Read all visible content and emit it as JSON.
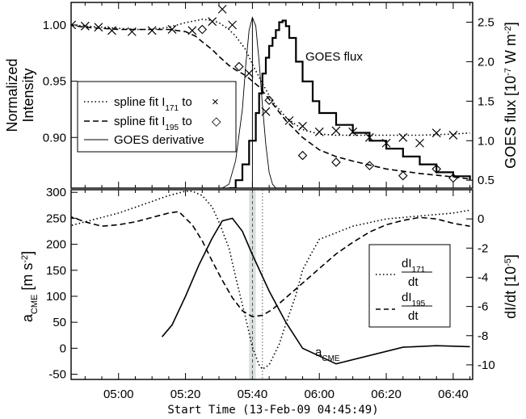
{
  "chart_data": [
    {
      "type": "line",
      "panel": "top",
      "x_unit": "UT",
      "xlim": [
        "04:45:49",
        "06:45:49"
      ],
      "ylabel_left": [
        "Normalized",
        "Intensity"
      ],
      "ylim_left": [
        0.855,
        1.02
      ],
      "yticks_left": [
        0.9,
        0.95,
        1.0
      ],
      "ytick_labels_left": [
        "0.90",
        "0.95",
        "1.00"
      ],
      "ylabel_right": "GOES flux [10-7 W m-2]",
      "ylabel_right_parts": {
        "base": "GOES flux [10",
        "exp1": "-7",
        "mid": " W m",
        "exp2": "-2",
        "end": "]"
      },
      "ylim_right": [
        0.4,
        2.75
      ],
      "yticks_right": [
        0.5,
        1.0,
        1.5,
        2.0,
        2.5
      ],
      "ytick_labels_right": [
        "0.5",
        "1.0",
        "1.5",
        "2.0",
        "2.5"
      ],
      "legend": {
        "placement": "left-middle",
        "entries": [
          {
            "label_base": "spline fit I",
            "label_sub": "171",
            "label_tail": " to",
            "marker": "×",
            "style": "dotted"
          },
          {
            "label_base": "spline fit I",
            "label_sub": "195",
            "label_tail": " to",
            "marker": "◇",
            "style": "dashed"
          },
          {
            "label_base": "GOES derivative",
            "style": "thin"
          }
        ]
      },
      "annotations": [
        "GOES flux"
      ],
      "series": [
        {
          "name": "spline fit I171",
          "axis": "left",
          "style": "dotted",
          "x": [
            "04:45",
            "04:50",
            "04:55",
            "05:00",
            "05:05",
            "05:10",
            "05:15",
            "05:20",
            "05:25",
            "05:28",
            "05:30",
            "05:33",
            "05:35",
            "05:38",
            "05:40",
            "05:43",
            "05:46",
            "05:50",
            "05:55",
            "06:00",
            "06:05",
            "06:10",
            "06:20",
            "06:30",
            "06:40",
            "06:45"
          ],
          "y": [
            1.0,
            0.999,
            0.998,
            0.997,
            0.996,
            0.996,
            0.998,
            1.002,
            1.005,
            1.004,
            1.002,
            0.996,
            0.99,
            0.978,
            0.965,
            0.948,
            0.932,
            0.918,
            0.907,
            0.903,
            0.902,
            0.902,
            0.902,
            0.902,
            0.903,
            0.904
          ]
        },
        {
          "name": "spline fit I195",
          "axis": "left",
          "style": "dashed",
          "x": [
            "04:45",
            "04:50",
            "04:55",
            "05:00",
            "05:05",
            "05:10",
            "05:15",
            "05:20",
            "05:23",
            "05:25",
            "05:28",
            "05:30",
            "05:33",
            "05:35",
            "05:38",
            "05:40",
            "05:42",
            "05:45",
            "05:50",
            "05:55",
            "06:00",
            "06:05",
            "06:10",
            "06:20",
            "06:30",
            "06:40",
            "06:45"
          ],
          "y": [
            1.0,
            0.998,
            0.997,
            0.996,
            0.996,
            0.996,
            0.996,
            0.994,
            0.99,
            0.985,
            0.978,
            0.972,
            0.964,
            0.96,
            0.955,
            0.95,
            0.945,
            0.934,
            0.915,
            0.9,
            0.889,
            0.883,
            0.879,
            0.872,
            0.868,
            0.865,
            0.863
          ]
        },
        {
          "name": "I171 data",
          "axis": "left",
          "style": "x-markers",
          "x": [
            "04:46",
            "04:50",
            "04:54",
            "04:58",
            "05:04",
            "05:10",
            "05:16",
            "05:22",
            "05:28",
            "05:31",
            "05:34",
            "05:39",
            "05:44",
            "05:51",
            "05:55",
            "06:00",
            "06:05",
            "06:10",
            "06:15",
            "06:20",
            "06:25",
            "06:30",
            "06:35",
            "06:40"
          ],
          "y": [
            1.0,
            0.999,
            0.998,
            0.995,
            0.994,
            0.995,
            0.996,
            0.995,
            1.003,
            1.014,
            1.0,
            0.957,
            0.923,
            0.915,
            0.91,
            0.905,
            0.906,
            0.905,
            0.9,
            0.895,
            0.9,
            0.895,
            0.904,
            0.902
          ]
        },
        {
          "name": "I195 data",
          "axis": "left",
          "style": "diamond-markers",
          "x": [
            "05:25",
            "05:36",
            "05:45",
            "05:55",
            "06:05",
            "06:15",
            "06:25",
            "06:35",
            "06:40"
          ],
          "y": [
            0.996,
            0.963,
            0.933,
            0.884,
            0.878,
            0.875,
            0.866,
            0.872,
            0.864
          ]
        },
        {
          "name": "GOES flux",
          "axis": "right",
          "style": "steps",
          "x": [
            "05:33",
            "05:35",
            "05:37",
            "05:39",
            "05:41",
            "05:42",
            "05:43",
            "05:44",
            "05:45",
            "05:46",
            "05:47",
            "05:48",
            "05:49",
            "05:50",
            "05:51",
            "05:53",
            "05:55",
            "05:58",
            "06:00",
            "06:05",
            "06:10",
            "06:15",
            "06:20",
            "06:25",
            "06:30",
            "06:35",
            "06:40",
            "06:45"
          ],
          "y": [
            0.4,
            0.5,
            0.7,
            1.0,
            1.35,
            1.6,
            1.85,
            2.05,
            2.2,
            2.3,
            2.4,
            2.5,
            2.52,
            2.45,
            2.3,
            2.0,
            1.75,
            1.5,
            1.35,
            1.2,
            1.1,
            1.0,
            0.9,
            0.8,
            0.7,
            0.6,
            0.55,
            0.5
          ]
        },
        {
          "name": "GOES derivative",
          "axis": "right",
          "style": "thin",
          "x": [
            "05:31",
            "05:33",
            "05:35",
            "05:37",
            "05:38",
            "05:39",
            "05:40",
            "05:41",
            "05:42",
            "05:43",
            "05:44",
            "05:45",
            "05:46",
            "05:47",
            "05:48",
            "06:45"
          ],
          "y": [
            0.4,
            0.45,
            0.75,
            1.4,
            1.95,
            2.4,
            2.56,
            2.45,
            2.0,
            1.45,
            0.95,
            0.6,
            0.45,
            0.4,
            0.4,
            0.4
          ]
        }
      ]
    },
    {
      "type": "line",
      "panel": "bottom",
      "xlabel": "Start Time (13-Feb-09 04:45:49)",
      "xlim": [
        "04:45:49",
        "06:45:49"
      ],
      "xticks": [
        "05:00",
        "05:20",
        "05:40",
        "06:00",
        "06:20",
        "06:40"
      ],
      "xtick_labels": [
        "05:00",
        "05:20",
        "05:40",
        "06:00",
        "06:20",
        "06:40"
      ],
      "ylabel_left_parts": {
        "base": "a",
        "sub": "CME",
        "unit": " [m s",
        "exp": "-2",
        "end": "]"
      },
      "ylim_left": [
        -60,
        305
      ],
      "yticks_left": [
        -50,
        0,
        50,
        100,
        150,
        200,
        250,
        300
      ],
      "ytick_labels_left": [
        "-50",
        "0",
        "50",
        "100",
        "150",
        "200",
        "250",
        "300"
      ],
      "ylabel_right_parts": {
        "base": "dI/dt [10",
        "exp": "-5",
        "end": "]"
      },
      "ylim_right": [
        -11.0,
        2.0
      ],
      "yticks_right": [
        -10,
        -8,
        -6,
        -4,
        -2,
        0
      ],
      "ytick_labels_right": [
        "-10",
        "-8",
        "-6",
        "-4",
        "-2",
        "0"
      ],
      "legend": {
        "placement": "right-middle",
        "entries": [
          {
            "num": "dI",
            "num_sub": "171",
            "den": "dt",
            "style": "dotted"
          },
          {
            "num": "dI",
            "num_sub": "195",
            "den": "dt",
            "style": "dashed"
          }
        ]
      },
      "annotation": {
        "base": "a",
        "sub": "CME"
      },
      "shaded_band": [
        "05:39",
        "05:41"
      ],
      "vlines": [
        {
          "x": "05:40",
          "style": "dashed"
        },
        {
          "x": "05:43",
          "style": "dotted"
        }
      ],
      "series": [
        {
          "name": "aCME",
          "axis": "left",
          "style": "solid",
          "x": [
            "05:13",
            "05:16",
            "05:20",
            "05:24",
            "05:28",
            "05:31",
            "05:34",
            "05:37",
            "05:40",
            "05:45",
            "05:50",
            "05:55",
            "06:05",
            "06:25",
            "06:35",
            "06:45"
          ],
          "y": [
            22,
            45,
            100,
            160,
            212,
            245,
            250,
            225,
            180,
            110,
            50,
            0,
            -30,
            2,
            5,
            3
          ]
        },
        {
          "name": "dI171/dt",
          "axis": "right",
          "style": "dotted",
          "x": [
            "04:45",
            "04:50",
            "04:55",
            "05:00",
            "05:05",
            "05:10",
            "05:15",
            "05:20",
            "05:22",
            "05:25",
            "05:28",
            "05:30",
            "05:33",
            "05:35",
            "05:38",
            "05:40",
            "05:42",
            "05:43",
            "05:45",
            "05:48",
            "05:50",
            "05:53",
            "05:55",
            "05:58",
            "06:00",
            "06:10",
            "06:20",
            "06:30",
            "06:40",
            "06:45"
          ],
          "y": [
            -0.5,
            -0.2,
            0.1,
            0.4,
            0.8,
            1.2,
            1.6,
            1.9,
            1.9,
            1.6,
            0.8,
            -0.2,
            -2.0,
            -4.0,
            -6.8,
            -8.8,
            -10.0,
            -10.3,
            -10.0,
            -8.6,
            -7.2,
            -5.2,
            -3.5,
            -2.2,
            -1.4,
            -0.5,
            0.0,
            0.2,
            0.4,
            0.6
          ]
        },
        {
          "name": "dI195/dt",
          "axis": "right",
          "style": "dashed",
          "x": [
            "04:45",
            "04:50",
            "04:55",
            "05:00",
            "05:05",
            "05:10",
            "05:15",
            "05:18",
            "05:22",
            "05:25",
            "05:28",
            "05:31",
            "05:34",
            "05:37",
            "05:40",
            "05:43",
            "05:46",
            "05:50",
            "05:55",
            "06:00",
            "06:05",
            "06:10",
            "06:15",
            "06:20",
            "06:25",
            "06:30",
            "06:35",
            "06:40",
            "06:45"
          ],
          "y": [
            0.2,
            -0.2,
            -0.5,
            -0.4,
            -0.2,
            0.1,
            0.4,
            0.5,
            -0.4,
            -1.5,
            -2.9,
            -4.2,
            -5.4,
            -6.3,
            -6.7,
            -6.6,
            -6.2,
            -5.4,
            -4.4,
            -3.4,
            -2.4,
            -1.6,
            -0.9,
            -0.4,
            -0.1,
            0.1,
            0.0,
            -0.3,
            -0.5
          ]
        }
      ]
    }
  ]
}
